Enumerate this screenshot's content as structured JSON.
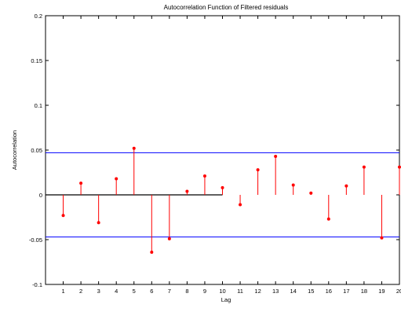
{
  "chart_data": {
    "type": "stem",
    "title": "Autocorrelation Function of Filtered residuals",
    "xlabel": "Lag",
    "ylabel": "Autocorrelation",
    "xlim": [
      0,
      20
    ],
    "ylim": [
      -0.1,
      0.2
    ],
    "xticks": [
      "1",
      "2",
      "3",
      "4",
      "5",
      "6",
      "7",
      "8",
      "9",
      "10",
      "11",
      "12",
      "13",
      "14",
      "15",
      "16",
      "17",
      "18",
      "19",
      "20"
    ],
    "yticks": [
      "-0.1",
      "-0.05",
      "0",
      "0.05",
      "0.1",
      "0.15",
      "0.2"
    ],
    "grid": false,
    "lags": [
      1,
      2,
      3,
      4,
      5,
      6,
      7,
      8,
      9,
      10,
      11,
      12,
      13,
      14,
      15,
      16,
      17,
      18,
      19,
      20
    ],
    "values": [
      -0.023,
      0.013,
      -0.031,
      0.018,
      0.052,
      -0.064,
      -0.049,
      0.004,
      0.021,
      0.008,
      -0.011,
      0.028,
      0.043,
      0.011,
      0.002,
      -0.027,
      0.01,
      0.031,
      -0.048,
      0.031
    ],
    "confidence_bounds": [
      0.047,
      -0.047
    ],
    "baseline_end_lag": 10,
    "colors": {
      "stem": "#ff0000",
      "bounds": "#0000ff",
      "baseline": "#000000",
      "axes": "#000000"
    }
  }
}
